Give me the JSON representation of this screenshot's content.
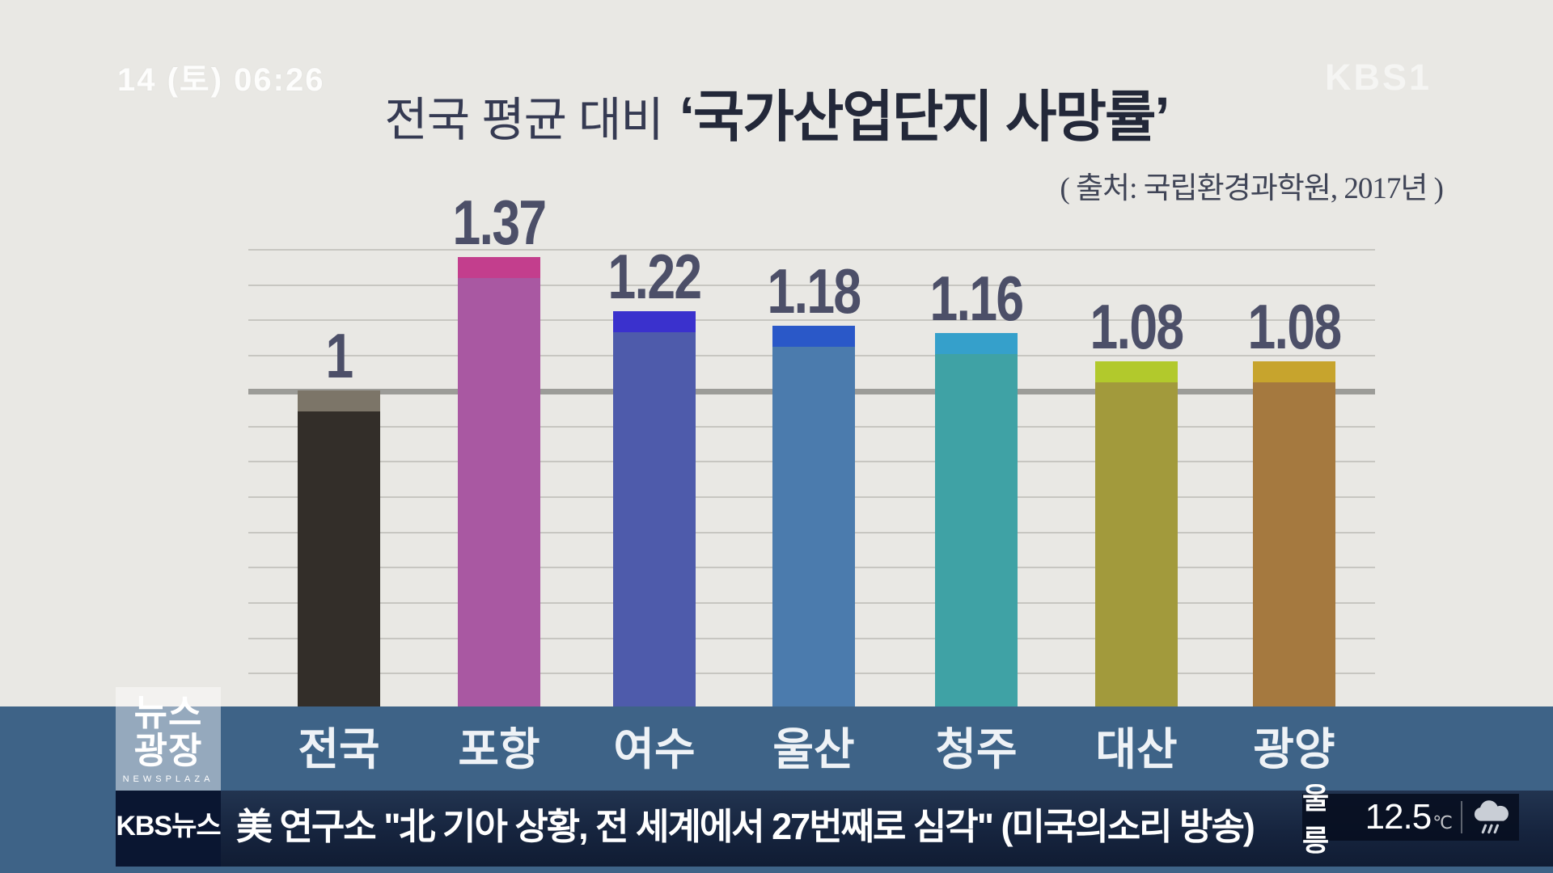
{
  "broadcast": {
    "timestamp": "14 (토) 06:26",
    "channel_watermark": "KBS1",
    "program_logo": {
      "line1": "뉴스",
      "line2": "광장",
      "subtitle": "NEWSPLAZA"
    },
    "ticker": {
      "label": "KBS뉴스",
      "headline": "美 연구소 \"北 기아 상황, 전 세계에서 27번째로 심각\" (미국의소리 방송)",
      "weather": {
        "location": "울릉",
        "temperature": "12.5",
        "unit": "℃",
        "icon": "rain-cloud-icon"
      }
    }
  },
  "header": {
    "title_regular": "전국 평균 대비",
    "title_bold": "‘국가산업단지 사망률’"
  },
  "chart_data": {
    "type": "bar",
    "title": "전국 평균 대비 ‘국가산업단지 사망률’",
    "source_note": "( 출처: 국립환경과학원, 2017년 )",
    "categories": [
      "전국",
      "포항",
      "여수",
      "울산",
      "청주",
      "대산",
      "광양"
    ],
    "values": [
      1,
      1.37,
      1.22,
      1.18,
      1.16,
      1.08,
      1.08
    ],
    "value_labels": [
      "1",
      "1.37",
      "1.22",
      "1.18",
      "1.16",
      "1.08",
      "1.08"
    ],
    "baseline_value": 1,
    "ylim": [
      0.12,
      1.6
    ],
    "grid": true,
    "legend": false,
    "xlabel": "",
    "ylabel": "",
    "value_label_color": "#4c4f68",
    "bar_colors": [
      {
        "body": "#332e29",
        "cap": "#7c7568"
      },
      {
        "body": "#a958a2",
        "cap": "#c33e8d"
      },
      {
        "body": "#4e5bab",
        "cap": "#3a31cd"
      },
      {
        "body": "#4b7bad",
        "cap": "#2a58c8"
      },
      {
        "body": "#3fa2a5",
        "cap": "#35a0cb"
      },
      {
        "body": "#a29a3c",
        "cap": "#b2c92c"
      },
      {
        "body": "#a5793f",
        "cap": "#c7a42d"
      }
    ]
  },
  "colors": {
    "paper": "#e9e8e4",
    "band_blue": "#3e6387",
    "ticker_navy": "#16243e",
    "ticker_label_navy": "#0a1631",
    "weather_box": "#0a1224",
    "title_navy": "#232839"
  }
}
